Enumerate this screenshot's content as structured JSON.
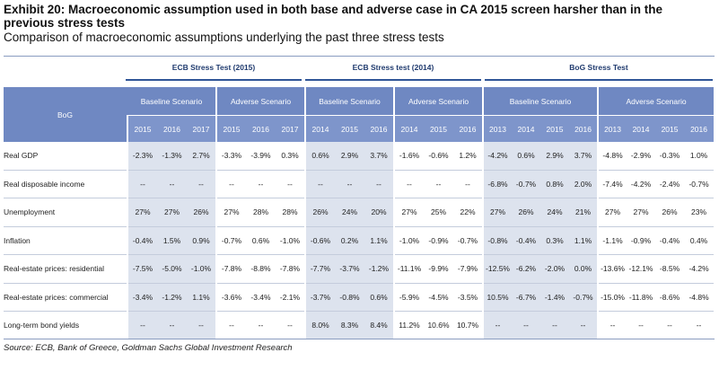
{
  "exhibit": {
    "title": "Exhibit 20: Macroeconomic assumption used in both base and adverse case in CA 2015 screen harsher than in the previous stress tests",
    "subtitle": "Comparison of macroeconomic assumptions underlying the past three stress tests",
    "source": "Source: ECB, Bank of Greece, Goldman Sachs Global Investment Research"
  },
  "groups": [
    {
      "label": "ECB Stress Test (2015)"
    },
    {
      "label": "ECB Stress test (2014)"
    },
    {
      "label": "BoG Stress Test"
    }
  ],
  "header": {
    "row_label": "BoG",
    "scenarios": [
      "Baseline Scenario",
      "Adverse Scenario",
      "Baseline Scenario",
      "Adverse Scenario",
      "Baseline Scenario",
      "Adverse Scenario"
    ],
    "years": [
      "2015",
      "2016",
      "2017",
      "2015",
      "2016",
      "2017",
      "2014",
      "2015",
      "2016",
      "2014",
      "2015",
      "2016",
      "2013",
      "2014",
      "2015",
      "2016",
      "2013",
      "2014",
      "2015",
      "2016"
    ]
  },
  "rows": [
    {
      "label": "Real GDP",
      "values": [
        "-2.3%",
        "-1.3%",
        "2.7%",
        "-3.3%",
        "-3.9%",
        "0.3%",
        "0.6%",
        "2.9%",
        "3.7%",
        "-1.6%",
        "-0.6%",
        "1.2%",
        "-4.2%",
        "0.6%",
        "2.9%",
        "3.7%",
        "-4.8%",
        "-2.9%",
        "-0.3%",
        "1.0%"
      ]
    },
    {
      "label": "Real disposable income",
      "values": [
        "--",
        "--",
        "--",
        "--",
        "--",
        "--",
        "--",
        "--",
        "--",
        "--",
        "--",
        "--",
        "-6.8%",
        "-0.7%",
        "0.8%",
        "2.0%",
        "-7.4%",
        "-4.2%",
        "-2.4%",
        "-0.7%"
      ]
    },
    {
      "label": "Unemployment",
      "values": [
        "27%",
        "27%",
        "26%",
        "27%",
        "28%",
        "28%",
        "26%",
        "24%",
        "20%",
        "27%",
        "25%",
        "22%",
        "27%",
        "26%",
        "24%",
        "21%",
        "27%",
        "27%",
        "26%",
        "23%"
      ]
    },
    {
      "label": "Inflation",
      "values": [
        "-0.4%",
        "1.5%",
        "0.9%",
        "-0.7%",
        "0.6%",
        "-1.0%",
        "-0.6%",
        "0.2%",
        "1.1%",
        "-1.0%",
        "-0.9%",
        "-0.7%",
        "-0.8%",
        "-0.4%",
        "0.3%",
        "1.1%",
        "-1.1%",
        "-0.9%",
        "-0.4%",
        "0.4%"
      ]
    },
    {
      "label": "Real-estate prices: residential",
      "values": [
        "-7.5%",
        "-5.0%",
        "-1.0%",
        "-7.8%",
        "-8.8%",
        "-7.8%",
        "-7.7%",
        "-3.7%",
        "-1.2%",
        "-11.1%",
        "-9.9%",
        "-7.9%",
        "-12.5%",
        "-6.2%",
        "-2.0%",
        "0.0%",
        "-13.6%",
        "-12.1%",
        "-8.5%",
        "-4.2%"
      ]
    },
    {
      "label": "Real-estate prices: commercial",
      "values": [
        "-3.4%",
        "-1.2%",
        "1.1%",
        "-3.6%",
        "-3.4%",
        "-2.1%",
        "-3.7%",
        "-0.8%",
        "0.6%",
        "-5.9%",
        "-4.5%",
        "-3.5%",
        "10.5%",
        "-6.7%",
        "-1.4%",
        "-0.7%",
        "-15.0%",
        "-11.8%",
        "-8.6%",
        "-4.8%"
      ]
    },
    {
      "label": "Long-term bond yields",
      "values": [
        "--",
        "--",
        "--",
        "--",
        "--",
        "--",
        "8.0%",
        "8.3%",
        "8.4%",
        "11.2%",
        "10.6%",
        "10.7%",
        "--",
        "--",
        "--",
        "--",
        "--",
        "--",
        "--",
        "--"
      ]
    }
  ]
}
